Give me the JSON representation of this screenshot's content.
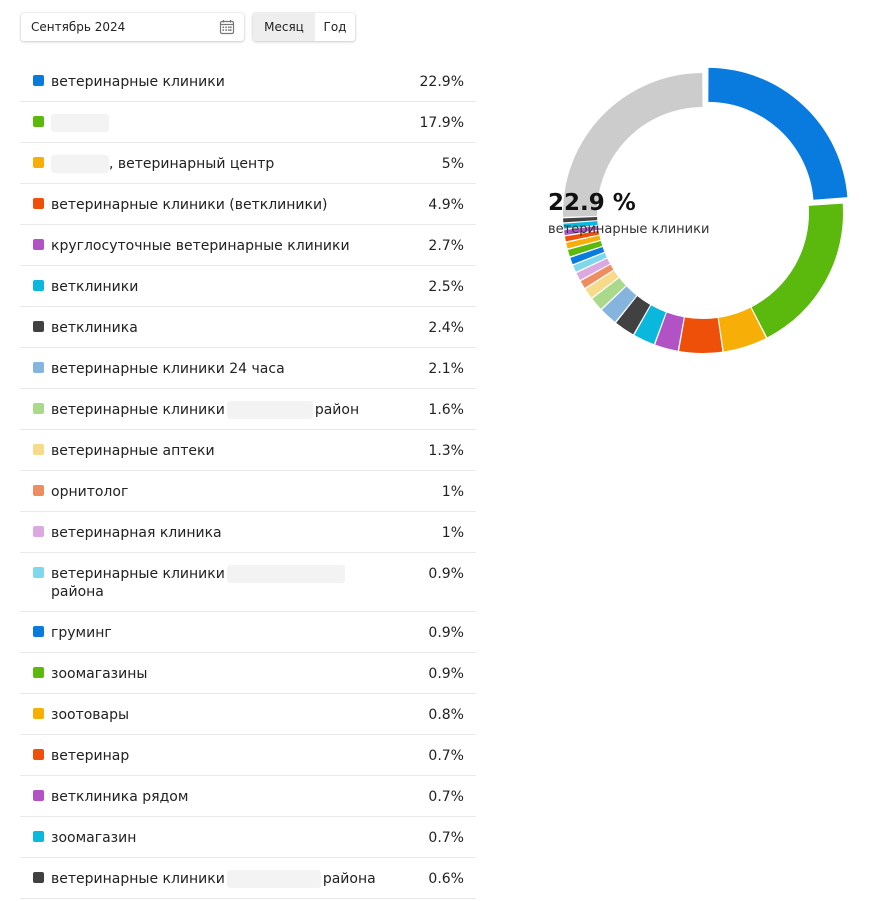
{
  "controls": {
    "date_value": "Сентябрь 2024",
    "calendar_icon": "calendar-icon",
    "period_month": "Месяц",
    "period_year": "Год",
    "period_selected": "Месяц"
  },
  "rows": [
    {
      "label": "ветеринарные клиники",
      "value": "22.9%",
      "color": "#0a7bde",
      "hidden_prefix": false,
      "hidden_mid": false
    },
    {
      "label": "",
      "value": "17.9%",
      "color": "#5bb80c",
      "hidden_prefix": true,
      "hidden_mid": false
    },
    {
      "label": ", ветеринарный центр",
      "value": "5%",
      "color": "#f7ae06",
      "hidden_prefix": true,
      "hidden_mid": false
    },
    {
      "label": "ветеринарные клиники (ветклиники)",
      "value": "4.9%",
      "color": "#ee4f09",
      "hidden_prefix": false,
      "hidden_mid": false
    },
    {
      "label": "круглосуточные ветеринарные клиники",
      "value": "2.7%",
      "color": "#b152c5",
      "hidden_prefix": false,
      "hidden_mid": false
    },
    {
      "label": "ветклиники",
      "value": "2.5%",
      "color": "#0ab7dd",
      "hidden_prefix": false,
      "hidden_mid": false
    },
    {
      "label": "ветклиника",
      "value": "2.4%",
      "color": "#414141",
      "hidden_prefix": false,
      "hidden_mid": false
    },
    {
      "label": "ветеринарные клиники 24 часа",
      "value": "2.1%",
      "color": "#85b5df",
      "hidden_prefix": false,
      "hidden_mid": false
    },
    {
      "label": "ветеринарные клиники",
      "label_after": "район",
      "value": "1.6%",
      "color": "#aad98b",
      "hidden_prefix": false,
      "hidden_mid": true
    },
    {
      "label": "ветеринарные аптеки",
      "value": "1.3%",
      "color": "#f8da8b",
      "hidden_prefix": false,
      "hidden_mid": false
    },
    {
      "label": "орнитолог",
      "value": "1%",
      "color": "#ef8d60",
      "hidden_prefix": false,
      "hidden_mid": false
    },
    {
      "label": "ветеринарная клиника",
      "value": "1%",
      "color": "#dba9df",
      "hidden_prefix": false,
      "hidden_mid": false
    },
    {
      "label": "ветеринарные клиники",
      "label_line2": "района",
      "value": "0.9%",
      "color": "#7fd7ec",
      "hidden_prefix": false,
      "hidden_mid": true
    },
    {
      "label": "груминг",
      "value": "0.9%",
      "color": "#0a7bde",
      "hidden_prefix": false,
      "hidden_mid": false
    },
    {
      "label": "зоомагазины",
      "value": "0.9%",
      "color": "#5bb80c",
      "hidden_prefix": false,
      "hidden_mid": false
    },
    {
      "label": "зоотовары",
      "value": "0.8%",
      "color": "#f7ae06",
      "hidden_prefix": false,
      "hidden_mid": false
    },
    {
      "label": "ветеринар",
      "value": "0.7%",
      "color": "#ee4f09",
      "hidden_prefix": false,
      "hidden_mid": false
    },
    {
      "label": "ветклиника рядом",
      "value": "0.7%",
      "color": "#b152c5",
      "hidden_prefix": false,
      "hidden_mid": false
    },
    {
      "label": "зоомагазин",
      "value": "0.7%",
      "color": "#0ab7dd",
      "hidden_prefix": false,
      "hidden_mid": false
    },
    {
      "label": "ветеринарные клиники",
      "label_after": "района",
      "value": "0.6%",
      "color": "#414141",
      "hidden_prefix": false,
      "hidden_mid": true
    }
  ],
  "donut": {
    "center_percent": "22.9 %",
    "center_label": "ветеринарные клиники",
    "highlighted_index": 0,
    "other_color": "#cccccc"
  },
  "chart_data": {
    "type": "pie",
    "categories": [
      "ветеринарные клиники",
      "",
      ", ветеринарный центр",
      "ветеринарные клиники (ветклиники)",
      "круглосуточные ветеринарные клиники",
      "ветклиники",
      "ветклиника",
      "ветеринарные клиники 24 часа",
      "ветеринарные клиники район",
      "ветеринарные аптеки",
      "орнитолог",
      "ветеринарная клиника",
      "ветеринарные клиники района",
      "груминг",
      "зоомагазины",
      "зоотовары",
      "ветеринар",
      "ветклиника рядом",
      "зоомагазин",
      "ветеринарные клиники района"
    ],
    "values": [
      22.9,
      17.9,
      5,
      4.9,
      2.7,
      2.5,
      2.4,
      2.1,
      1.6,
      1.3,
      1,
      1,
      0.9,
      0.9,
      0.9,
      0.8,
      0.7,
      0.7,
      0.7,
      0.6
    ],
    "remainder_value": 24.5,
    "unit": "%"
  }
}
